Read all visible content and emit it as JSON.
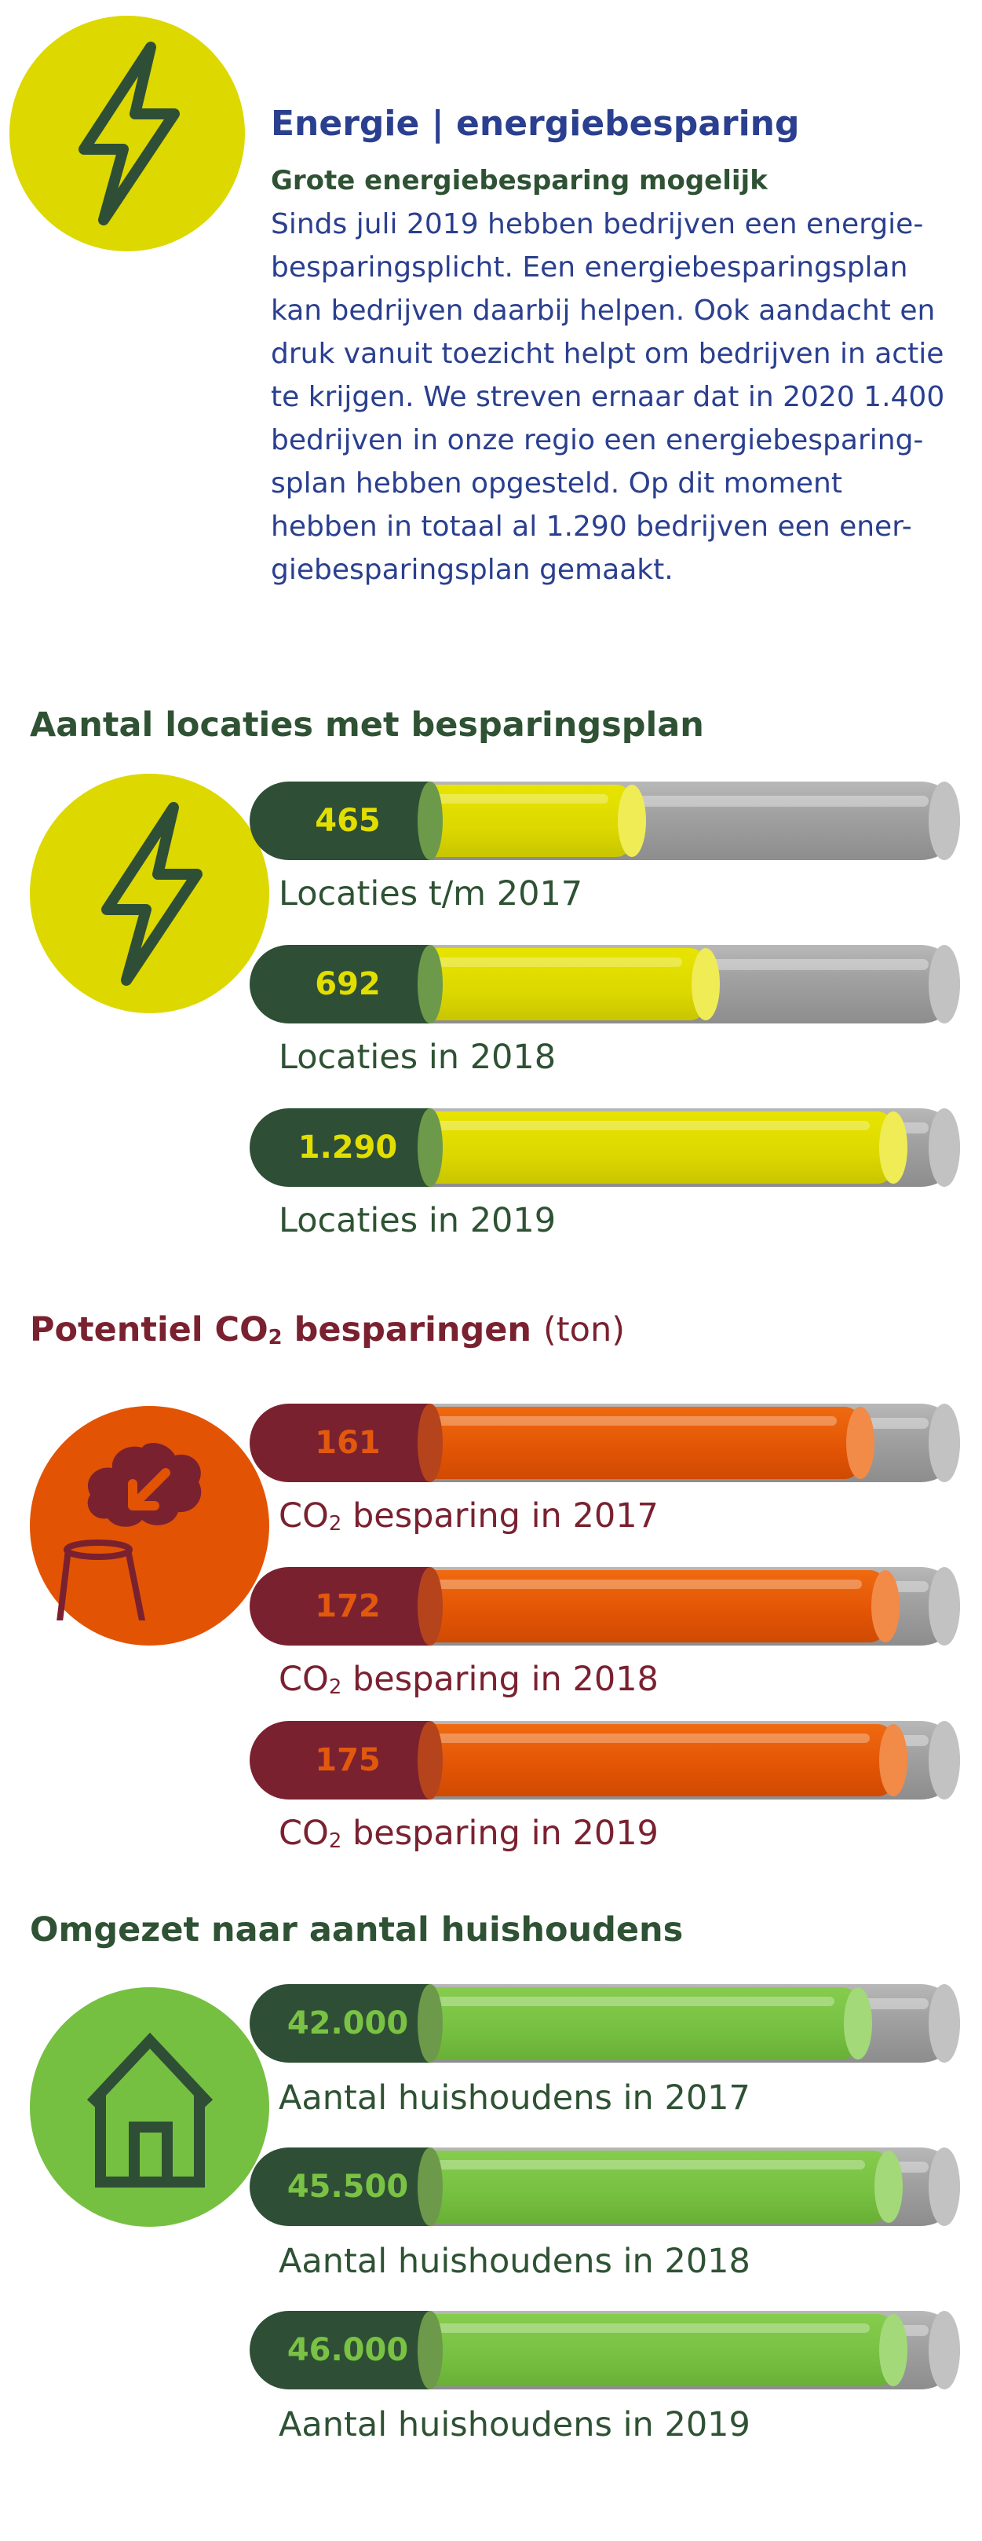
{
  "header": {
    "title": "Energie | energiebesparing",
    "subtitle": "Grote energiebesparing mogelijk",
    "body_lines": [
      "Sinds juli 2019 hebben bedrijven een energie-",
      "besparingsplicht. Een energiebesparingsplan",
      "kan bedrijven daarbij helpen. Ook aandacht en",
      "druk vanuit toezicht helpt om bedrijven in actie",
      "te krijgen. We streven ernaar dat in 2020 1.400",
      "bedrijven in onze regio een energiebesparing-",
      "splan hebben opgesteld. Op dit moment",
      "hebben in totaal al 1.290 bedrijven een ener-",
      "giebesparingsplan gemaakt."
    ],
    "icon": "lightning-icon"
  },
  "sections": [
    {
      "heading": "Aantal locaties met besparingsplan",
      "icon": "lightning-icon",
      "color": "#2e5233",
      "bars": [
        {
          "value": "465",
          "label": "Locaties t/m 2017",
          "fill_fraction": 0.36
        },
        {
          "value": "692",
          "label": "Locaties in 2018",
          "fill_fraction": 0.54
        },
        {
          "value": "1.290",
          "label": "Locaties in 2019",
          "fill_fraction": 1.0
        }
      ]
    },
    {
      "heading_pre": "Potentiel CO",
      "heading_sub": "2",
      "heading_post": " besparingen",
      "unit": "(ton)",
      "icon": "smokestack-icon",
      "color": "#7a2130",
      "bars": [
        {
          "value": "161",
          "label_pre": "CO",
          "label_sub": "2",
          "label_post": " besparing in 2017",
          "fill_fraction": 0.92
        },
        {
          "value": "172",
          "label_pre": "CO",
          "label_sub": "2",
          "label_post": " besparing in 2018",
          "fill_fraction": 0.98
        },
        {
          "value": "175",
          "label_pre": "CO",
          "label_sub": "2",
          "label_post": " besparing in 2019",
          "fill_fraction": 1.0
        }
      ]
    },
    {
      "heading": "Omgezet naar aantal huishoudens",
      "icon": "house-icon",
      "color": "#2e5233",
      "bars": [
        {
          "value": "42.000",
          "label": "Aantal huishoudens in 2017",
          "fill_fraction": 0.913
        },
        {
          "value": "45.500",
          "label": "Aantal huishoudens in 2018",
          "fill_fraction": 0.989
        },
        {
          "value": "46.000",
          "label": "Aantal huishoudens in 2019",
          "fill_fraction": 1.0
        }
      ]
    }
  ],
  "colors": {
    "yellow": "#dcd800",
    "orange": "#e25404",
    "light_green": "#76c041",
    "dark_green": "#2e5233",
    "blue": "#2a3f8f",
    "maroon": "#7a2130"
  }
}
